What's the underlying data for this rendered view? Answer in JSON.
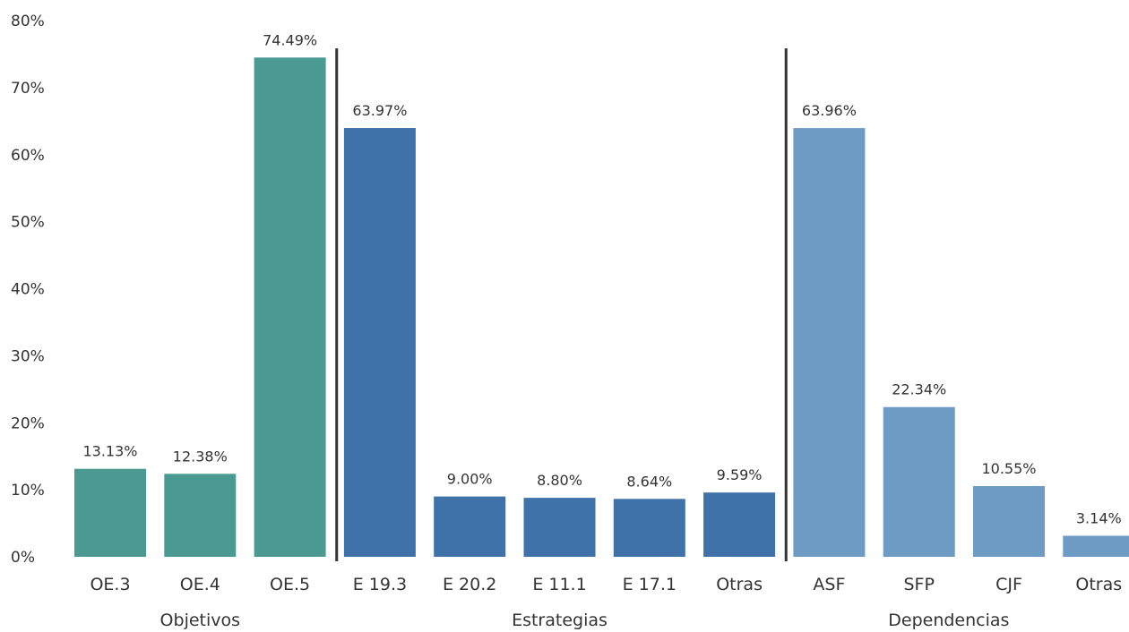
{
  "chart_data": {
    "type": "bar",
    "title": "",
    "xlabel": "",
    "ylabel": "",
    "ylim": [
      0,
      80
    ],
    "yticks": [
      0,
      10,
      20,
      30,
      40,
      50,
      60,
      70,
      80
    ],
    "ytick_labels": [
      "0%",
      "10%",
      "20%",
      "30%",
      "40%",
      "50%",
      "60%",
      "70%",
      "80%"
    ],
    "grid": false,
    "legend": "none",
    "groups": [
      {
        "name": "Objetivos",
        "color": "#4a9a91",
        "categories": [
          "OE.3",
          "OE.4",
          "OE.5"
        ],
        "values": [
          13.13,
          12.38,
          74.49
        ],
        "labels": [
          "13.13%",
          "12.38%",
          "74.49%"
        ]
      },
      {
        "name": "Estrategias",
        "color": "#3e72a8",
        "categories": [
          "E 19.3",
          "E 20.2",
          "E 11.1",
          "E 17.1",
          "Otras"
        ],
        "values": [
          63.97,
          9.0,
          8.8,
          8.64,
          9.59
        ],
        "labels": [
          "63.97%",
          "9.00%",
          "8.80%",
          "8.64%",
          "9.59%"
        ]
      },
      {
        "name": "Dependencias",
        "color": "#6d9bc4",
        "categories": [
          "ASF",
          "SFP",
          "CJF",
          "Otras"
        ],
        "values": [
          63.96,
          22.34,
          10.55,
          3.14
        ],
        "labels": [
          "63.96%",
          "22.34%",
          "10.55%",
          "3.14%"
        ]
      }
    ]
  }
}
